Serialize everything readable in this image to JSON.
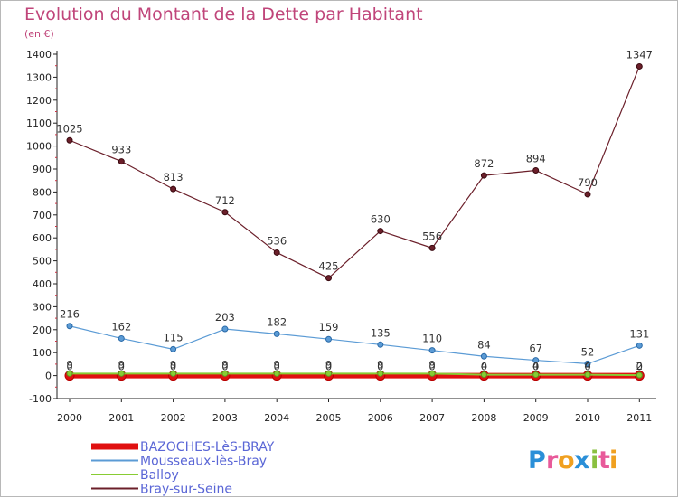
{
  "chart_data": {
    "type": "line",
    "title": "Evolution du Montant de la Dette par Habitant",
    "subtitle": "(en €)",
    "x": [
      "2000",
      "2001",
      "2002",
      "2003",
      "2004",
      "2005",
      "2006",
      "2007",
      "2008",
      "2009",
      "2010",
      "2011"
    ],
    "ylim": [
      -100,
      1400
    ],
    "yticks": [
      -100,
      0,
      100,
      200,
      300,
      400,
      500,
      600,
      700,
      800,
      900,
      1000,
      1100,
      1200,
      1300,
      1400
    ],
    "grid": false,
    "legend_position": "bottom-left",
    "series": [
      {
        "name": "BAZOCHES-LèS-BRAY",
        "color": "#e01010",
        "values": [
          0,
          0,
          0,
          0,
          0,
          0,
          0,
          0,
          0,
          0,
          0,
          0
        ],
        "labels": [
          "0",
          "0",
          "0",
          "0",
          "0",
          "0",
          "0",
          "0",
          "0",
          "0",
          "0",
          "0"
        ]
      },
      {
        "name": "Mousseaux-lès-Bray",
        "color": "#5b9bd5",
        "values": [
          216,
          162,
          115,
          203,
          182,
          159,
          135,
          110,
          84,
          67,
          52,
          131
        ],
        "labels": [
          "216",
          "162",
          "115",
          "203",
          "182",
          "159",
          "135",
          "110",
          "84",
          "67",
          "52",
          "131"
        ]
      },
      {
        "name": "Balloy",
        "color": "#88cc33",
        "values": [
          9,
          9,
          9,
          9,
          9,
          9,
          9,
          9,
          4,
          4,
          4,
          2
        ],
        "labels": [
          "9",
          "9",
          "9",
          "9",
          "9",
          "9",
          "9",
          "9",
          "4",
          "4",
          "4",
          "2"
        ]
      },
      {
        "name": "Bray-sur-Seine",
        "color": "#6b1f2a",
        "values": [
          1025,
          933,
          813,
          712,
          536,
          425,
          630,
          556,
          872,
          894,
          790,
          1347
        ],
        "labels": [
          "1025",
          "933",
          "813",
          "712",
          "536",
          "425",
          "630",
          "556",
          "872",
          "894",
          "790",
          "1347"
        ]
      }
    ]
  },
  "logo": {
    "text": "Proxiti",
    "letters": [
      {
        "ch": "P",
        "color": "#2a8fd8"
      },
      {
        "ch": "r",
        "color": "#e85a9a"
      },
      {
        "ch": "o",
        "color": "#f0a020"
      },
      {
        "ch": "x",
        "color": "#2a8fd8"
      },
      {
        "ch": "i",
        "color": "#8ac040"
      },
      {
        "ch": "t",
        "color": "#e85a9a"
      },
      {
        "ch": "i",
        "color": "#f0a020"
      }
    ]
  }
}
